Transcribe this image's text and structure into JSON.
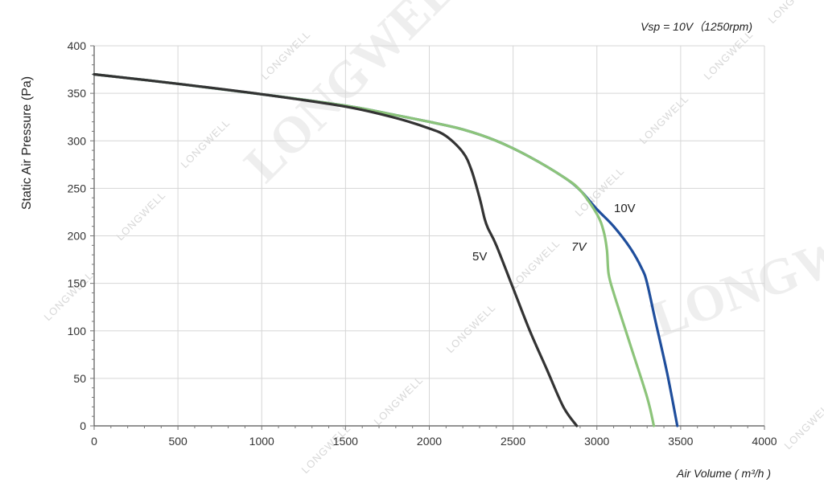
{
  "chart_data": {
    "type": "line",
    "title": "",
    "annotation": "Vsp = 10V（1250rpm)",
    "xlabel": "Air Volume ( m³/h )",
    "ylabel": "Static Air Pressure  (Pa)",
    "xlim": [
      0,
      4000
    ],
    "ylim": [
      0,
      400
    ],
    "xticks": [
      0,
      500,
      1000,
      1500,
      2000,
      2500,
      3000,
      3500,
      4000
    ],
    "yticks": [
      0,
      50,
      100,
      150,
      200,
      250,
      300,
      350,
      400
    ],
    "grid": true,
    "legend": "none",
    "series": [
      {
        "name": "10V",
        "color": "#1f4e9c",
        "x": [
          0,
          500,
          1000,
          1500,
          1800,
          2000,
          2200,
          2400,
          2600,
          2800,
          2900,
          3000,
          3100,
          3200,
          3270,
          3300,
          3350,
          3420,
          3480
        ],
        "y": [
          370,
          360,
          349,
          337,
          327,
          320,
          312,
          300,
          283,
          262,
          248,
          228,
          210,
          187,
          165,
          150,
          110,
          55,
          0
        ]
      },
      {
        "name": "7V",
        "color": "#8cc47a",
        "x": [
          0,
          500,
          1000,
          1500,
          1800,
          2000,
          2200,
          2400,
          2600,
          2800,
          2900,
          3000,
          3040,
          3060,
          3070,
          3100,
          3200,
          3300,
          3340
        ],
        "y": [
          370,
          360,
          349,
          337,
          327,
          320,
          312,
          300,
          283,
          262,
          248,
          223,
          205,
          185,
          160,
          140,
          85,
          30,
          0
        ]
      },
      {
        "name": "5V",
        "color": "#333333",
        "x": [
          0,
          500,
          1000,
          1500,
          1800,
          2000,
          2100,
          2200,
          2250,
          2300,
          2330,
          2350,
          2400,
          2500,
          2600,
          2700,
          2800,
          2880
        ],
        "y": [
          370,
          360,
          349,
          336,
          324,
          313,
          305,
          288,
          270,
          240,
          218,
          208,
          190,
          145,
          100,
          60,
          20,
          0
        ]
      }
    ]
  },
  "watermark": {
    "text": "LONGWELL",
    "brand": "LONGWELL"
  }
}
